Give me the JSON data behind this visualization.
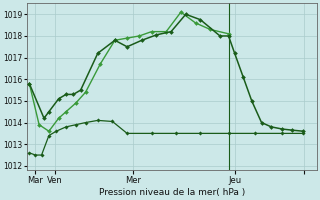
{
  "bg_color": "#cce8e8",
  "grid_color": "#aacccc",
  "dark_green": "#1a5c1a",
  "light_green": "#3a9a3a",
  "ylim": [
    1011.8,
    1019.5
  ],
  "yticks": [
    1012,
    1013,
    1014,
    1015,
    1016,
    1017,
    1018,
    1019
  ],
  "title": "Pression niveau de la mer( hPa )",
  "xtick_pos": [
    5,
    21,
    85,
    168,
    225
  ],
  "xtick_labels": [
    "Mar",
    "Ven",
    "Mer",
    "Jeu",
    ""
  ],
  "xlim": [
    -2,
    235
  ],
  "vline_x": 163,
  "series1_x": [
    0,
    12,
    16,
    24,
    30,
    36,
    42,
    56,
    70,
    80,
    92,
    104,
    116,
    128,
    140,
    156,
    163,
    168,
    175,
    182,
    190,
    198,
    207,
    215,
    224
  ],
  "series1_y": [
    1015.8,
    1014.2,
    1014.5,
    1015.1,
    1015.3,
    1015.3,
    1015.5,
    1017.2,
    1017.8,
    1017.5,
    1017.8,
    1018.05,
    1018.2,
    1019.0,
    1018.75,
    1018.0,
    1018.0,
    1017.2,
    1016.1,
    1015.0,
    1014.0,
    1013.8,
    1013.7,
    1013.65,
    1013.6
  ],
  "series2_x": [
    0,
    8,
    16,
    24,
    30,
    38,
    46,
    58,
    70,
    80,
    90,
    100,
    112,
    124,
    136,
    148,
    163
  ],
  "series2_y": [
    1015.8,
    1013.9,
    1013.6,
    1014.2,
    1014.5,
    1014.9,
    1015.4,
    1016.7,
    1017.8,
    1017.9,
    1018.0,
    1018.2,
    1018.2,
    1019.1,
    1018.6,
    1018.3,
    1018.1
  ],
  "series3_x": [
    0,
    5,
    10,
    16,
    22,
    30,
    38,
    46,
    56,
    68,
    80,
    100,
    120,
    140,
    163,
    185,
    207,
    224
  ],
  "series3_y": [
    1012.6,
    1012.5,
    1012.5,
    1013.4,
    1013.6,
    1013.8,
    1013.9,
    1014.0,
    1014.1,
    1014.05,
    1013.5,
    1013.5,
    1013.5,
    1013.5,
    1013.5,
    1013.5,
    1013.5,
    1013.5
  ]
}
